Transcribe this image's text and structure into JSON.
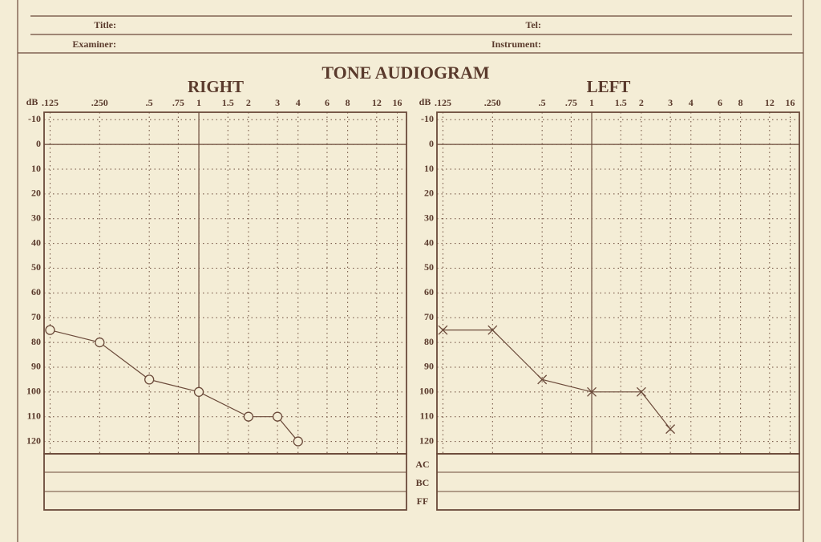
{
  "form": {
    "heading": "TONE AUDIOGRAM",
    "fields": [
      "Title:",
      "Tel:",
      "Examiner:",
      "Instrument:"
    ],
    "rows": [
      "AC",
      "BC",
      "FF"
    ]
  },
  "chart_data": [
    {
      "type": "line",
      "title": "RIGHT",
      "y_label": "dB",
      "color": "#6b4a3a",
      "marker": "circle",
      "x": [
        0.125,
        0.25,
        0.5,
        1,
        2,
        3,
        4
      ],
      "values": [
        75,
        80,
        95,
        100,
        110,
        110,
        120
      ],
      "xscale": "log",
      "xlim": [
        0.115,
        18.2
      ],
      "xticks": [
        {
          "value": 0.125,
          "label": ".125"
        },
        {
          "value": 0.25,
          "label": ".250"
        },
        {
          "value": 0.5,
          "label": ".5"
        },
        {
          "value": 0.75,
          "label": ".75"
        },
        1,
        1.5,
        2,
        3,
        4,
        6,
        8,
        12,
        16
      ],
      "ylim": [
        -13,
        125
      ],
      "y_inverted": true,
      "yticks": [
        -10,
        0,
        10,
        20,
        30,
        40,
        50,
        60,
        70,
        80,
        90,
        100,
        110,
        120
      ],
      "grid": true,
      "xline": 1,
      "yline": 0
    },
    {
      "type": "line",
      "title": "LEFT",
      "y_label": "dB",
      "color": "#6b4a3a",
      "marker": "x",
      "x": [
        0.125,
        0.25,
        0.5,
        1,
        2,
        3
      ],
      "values": [
        75,
        75,
        95,
        100,
        100,
        115
      ],
      "xscale": "log",
      "xlim": [
        0.115,
        18.2
      ],
      "xticks": [
        {
          "value": 0.125,
          "label": ".125"
        },
        {
          "value": 0.25,
          "label": ".250"
        },
        {
          "value": 0.5,
          "label": ".5"
        },
        {
          "value": 0.75,
          "label": ".75"
        },
        1,
        1.5,
        2,
        3,
        4,
        6,
        8,
        12,
        16
      ],
      "ylim": [
        -13,
        125
      ],
      "y_inverted": true,
      "yticks": [
        -10,
        0,
        10,
        20,
        30,
        40,
        50,
        60,
        70,
        80,
        90,
        100,
        110,
        120
      ],
      "grid": true,
      "xline": 1,
      "yline": 0
    }
  ]
}
